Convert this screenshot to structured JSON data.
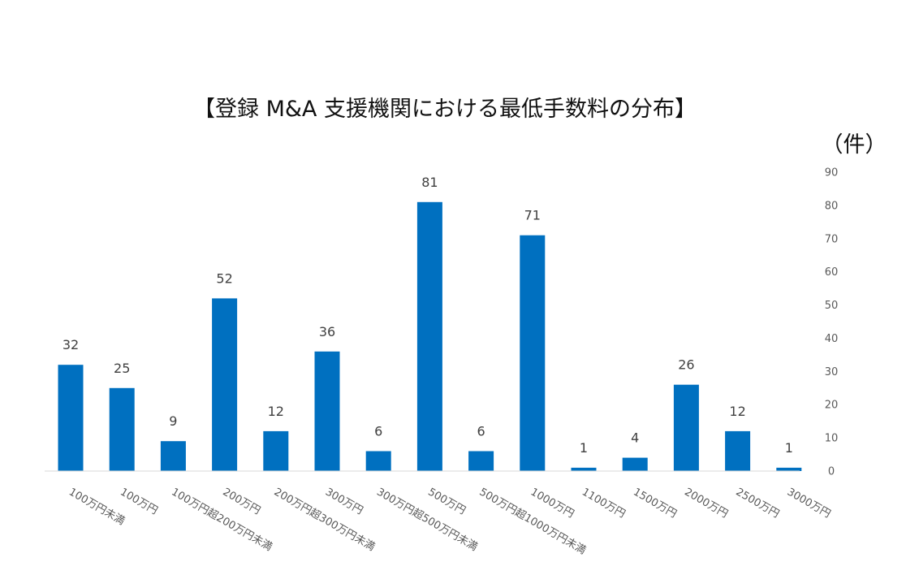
{
  "chart_data": {
    "type": "bar",
    "title": "【登録 M&A 支援機関における最低手数料の分布】",
    "ylabel": "（件）",
    "xlabel": "",
    "categories": [
      "100万円未満",
      "100万円",
      "100万円超200万円未満",
      "200万円",
      "200万円超300万円未満",
      "300万円",
      "300万円超500万円未満",
      "500万円",
      "500万円超1000万円未満",
      "1000万円",
      "1100万円",
      "1500万円",
      "2000万円",
      "2500万円",
      "3000万円"
    ],
    "values": [
      32,
      25,
      9,
      52,
      12,
      36,
      6,
      81,
      6,
      71,
      1,
      4,
      26,
      12,
      1
    ],
    "ylim": [
      0,
      90
    ],
    "yticks": [
      0,
      10,
      20,
      30,
      40,
      50,
      60,
      70,
      80,
      90
    ],
    "y_axis_side": "right",
    "grid": false,
    "legend": "none",
    "data_labels": true,
    "bar_color": "#0070C0",
    "axis_color": "#D9D9D9",
    "label_color": "#595959"
  }
}
